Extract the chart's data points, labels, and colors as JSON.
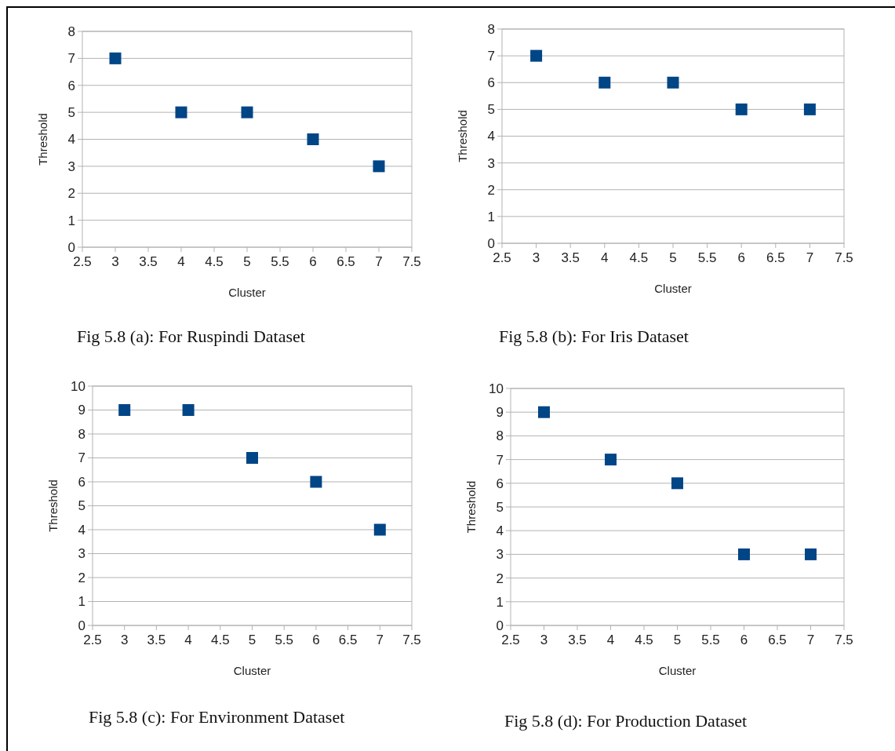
{
  "chart_data": [
    {
      "type": "scatter",
      "xlabel": "Cluster",
      "ylabel": "Threshold",
      "x": [
        3,
        4,
        5,
        6,
        7
      ],
      "series": [
        {
          "color": "#004586",
          "values": [
            7,
            5,
            5,
            4,
            3
          ]
        }
      ],
      "xlim": [
        2.5,
        7.5
      ],
      "ylim": [
        0,
        8
      ],
      "xticks": [
        2.5,
        3,
        3.5,
        4,
        4.5,
        5,
        5.5,
        6,
        6.5,
        7,
        7.5
      ],
      "yticks": [
        0,
        1,
        2,
        3,
        4,
        5,
        6,
        7,
        8
      ],
      "grid": "y",
      "marker": "square",
      "annotations": [
        "Fig 5.8 (a): For Ruspindi Dataset"
      ]
    },
    {
      "type": "scatter",
      "xlabel": "Cluster",
      "ylabel": "Threshold",
      "x": [
        3,
        4,
        5,
        6,
        7
      ],
      "series": [
        {
          "color": "#004586",
          "values": [
            7,
            6,
            6,
            5,
            5
          ]
        }
      ],
      "xlim": [
        2.5,
        7.5
      ],
      "ylim": [
        0,
        8
      ],
      "xticks": [
        2.5,
        3,
        3.5,
        4,
        4.5,
        5,
        5.5,
        6,
        6.5,
        7,
        7.5
      ],
      "yticks": [
        0,
        1,
        2,
        3,
        4,
        5,
        6,
        7,
        8
      ],
      "grid": "y",
      "marker": "square",
      "annotations": [
        "Fig 5.8 (b): For Iris Dataset"
      ]
    },
    {
      "type": "scatter",
      "xlabel": "Cluster",
      "ylabel": "Threshold",
      "x": [
        3,
        4,
        5,
        6,
        7
      ],
      "series": [
        {
          "color": "#004586",
          "values": [
            9,
            9,
            7,
            6,
            4
          ]
        }
      ],
      "xlim": [
        2.5,
        7.5
      ],
      "ylim": [
        0,
        10
      ],
      "xticks": [
        2.5,
        3,
        3.5,
        4,
        4.5,
        5,
        5.5,
        6,
        6.5,
        7,
        7.5
      ],
      "yticks": [
        0,
        1,
        2,
        3,
        4,
        5,
        6,
        7,
        8,
        9,
        10
      ],
      "grid": "y",
      "marker": "square",
      "annotations": [
        "Fig 5.8 (c): For Environment Dataset"
      ]
    },
    {
      "type": "scatter",
      "xlabel": "Cluster",
      "ylabel": "Threshold",
      "x": [
        3,
        4,
        5,
        6,
        7
      ],
      "series": [
        {
          "color": "#004586",
          "values": [
            9,
            7,
            6,
            3,
            3
          ]
        }
      ],
      "xlim": [
        2.5,
        7.5
      ],
      "ylim": [
        0,
        10
      ],
      "xticks": [
        2.5,
        3,
        3.5,
        4,
        4.5,
        5,
        5.5,
        6,
        6.5,
        7,
        7.5
      ],
      "yticks": [
        0,
        1,
        2,
        3,
        4,
        5,
        6,
        7,
        8,
        9,
        10
      ],
      "grid": "y",
      "marker": "square",
      "annotations": [
        "Fig 5.8 (d): For Production Dataset"
      ]
    }
  ]
}
